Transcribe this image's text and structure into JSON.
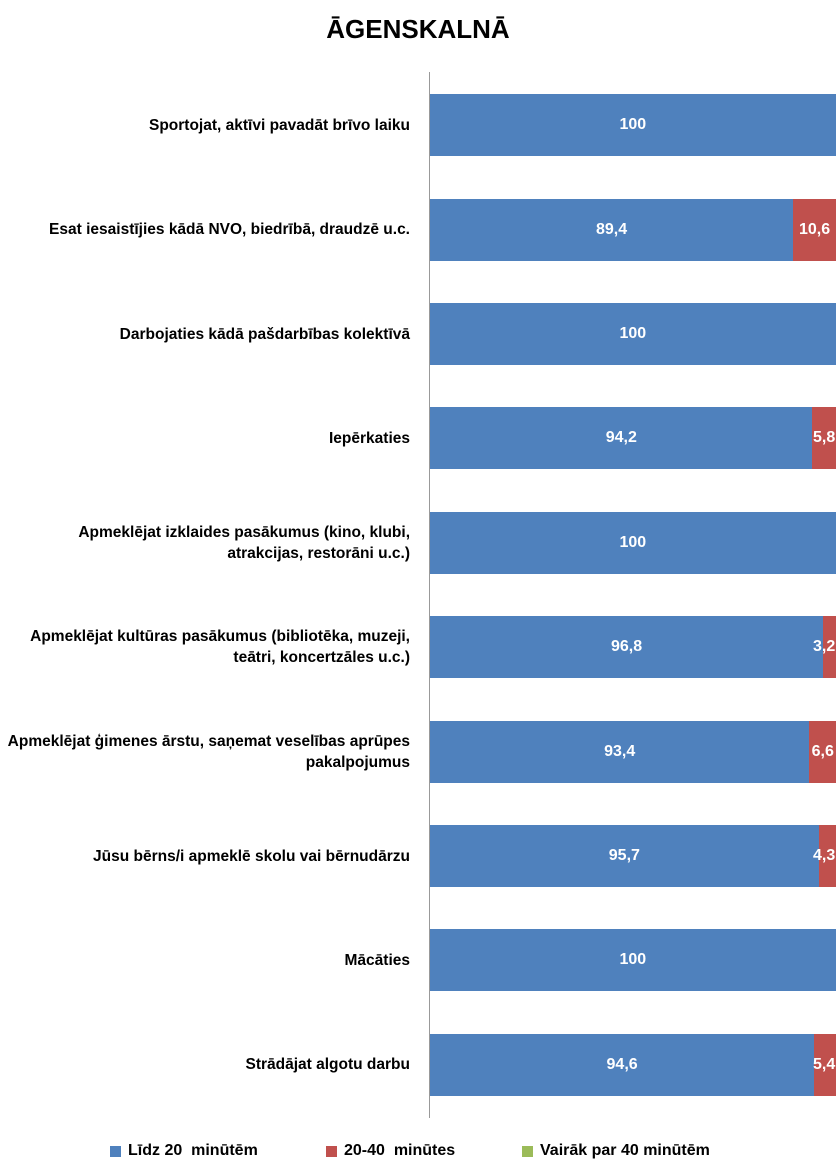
{
  "chart_data": {
    "type": "stacked-bar-horizontal",
    "title": "ĀGENSKALNĀ",
    "categories": [
      "Sportojat, aktīvi pavadāt brīvo laiku",
      "Esat iesaistījies kādā NVO, biedrībā, draudzē u.c.",
      "Darbojaties kādā pašdarbības kolektīvā",
      "Iepērkaties",
      "Apmeklējat izklaides pasākumus (kino, klubi, atrakcijas, restorāni u.c.)",
      "Apmeklējat kultūras pasākumus (bibliotēka, muzeji, teātri, koncertzāles u.c.)",
      "Apmeklējat ģimenes ārstu, saņemat veselības aprūpes pakalpojumus",
      "Jūsu bērns/i apmeklē skolu vai bērnudārzu",
      "Mācāties",
      "Strādājat algotu darbu"
    ],
    "series": [
      {
        "name": "Līdz 20  minūtēm",
        "color": "#4f81bd",
        "values": [
          100,
          89.4,
          100,
          94.2,
          100,
          96.8,
          93.4,
          95.7,
          100,
          94.6
        ],
        "value_labels": [
          "100",
          "89,4",
          "100",
          "94,2",
          "100",
          "96,8",
          "93,4",
          "95,7",
          "100",
          "94,6"
        ]
      },
      {
        "name": "20-40  minūtes",
        "color": "#c0504d",
        "values": [
          null,
          10.6,
          null,
          5.8,
          null,
          3.2,
          6.6,
          4.3,
          null,
          5.4
        ],
        "value_labels": [
          null,
          "10,6",
          null,
          "5,8",
          null,
          "3,2",
          "6,6",
          "4,3",
          null,
          "5,4"
        ]
      },
      {
        "name": "Vairāk par 40 minūtēm",
        "color": "#9bbb59",
        "values": [
          null,
          null,
          null,
          null,
          null,
          null,
          null,
          null,
          null,
          null
        ]
      }
    ],
    "xlim": [
      0,
      100
    ]
  }
}
